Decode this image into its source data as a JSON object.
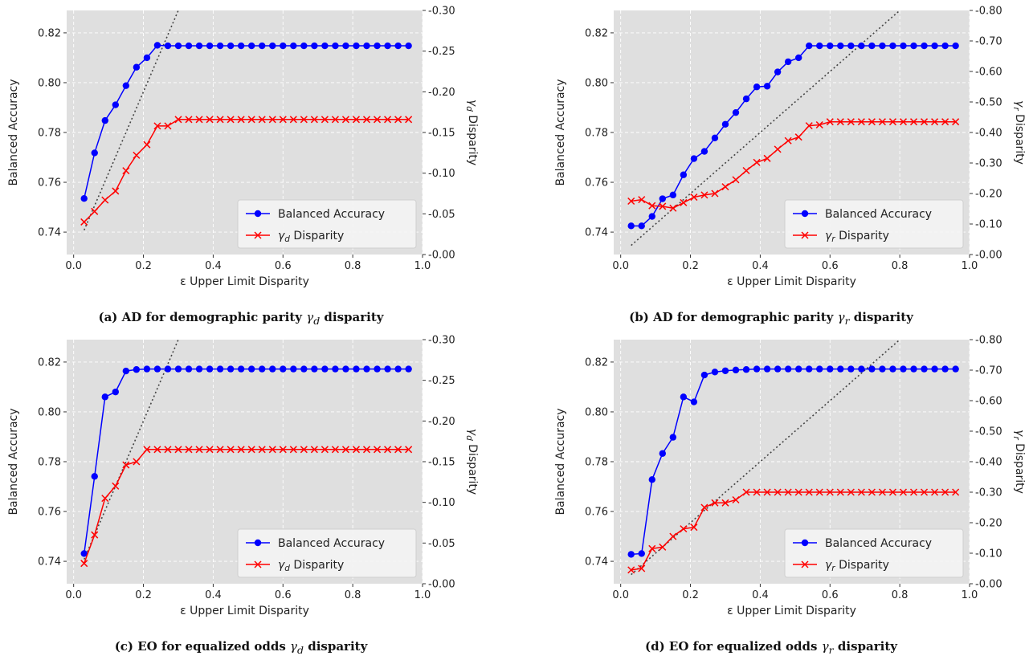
{
  "colors": {
    "plot_bg": "#dfdfdf",
    "grid": "#ffffff",
    "accuracy": "#0000ff",
    "disparity": "#ff0000",
    "diagonal": "#444444"
  },
  "chart_data": [
    {
      "type": "line",
      "caption": {
        "prefix": "(a) AD for demographic parity ",
        "sym": "γ",
        "sub": "d",
        "suffix": " disparity"
      },
      "xlabel": "ε Upper Limit Disparity",
      "ylabel": "Balanced Accuracy",
      "y2label": {
        "sym": "γ",
        "sub": "d",
        "rest": " Disparity"
      },
      "xlim": [
        -0.02,
        1.0
      ],
      "ylim": [
        0.731,
        0.829
      ],
      "y2lim": [
        0.0,
        0.3
      ],
      "xticks": [
        "0.0",
        "0.2",
        "0.4",
        "0.6",
        "0.8",
        "1.0"
      ],
      "yticks": [
        "0.74",
        "0.76",
        "0.78",
        "0.80",
        "0.82"
      ],
      "y2ticks": [
        "0.00",
        "0.05",
        "0.10",
        "0.15",
        "0.20",
        "0.25",
        "0.30"
      ],
      "legend_position": "lower-right",
      "grid": true,
      "series": [
        {
          "name": "Balanced Accuracy",
          "axis": "left",
          "marker": "circle",
          "x": [
            0.03,
            0.06,
            0.09,
            0.12,
            0.15,
            0.18,
            0.21,
            0.24,
            0.27,
            0.3,
            0.33,
            0.36,
            0.39,
            0.42,
            0.45,
            0.48,
            0.51,
            0.54,
            0.57,
            0.6,
            0.63,
            0.66,
            0.69,
            0.72,
            0.75,
            0.78,
            0.81,
            0.84,
            0.87,
            0.9,
            0.93,
            0.96
          ],
          "y": [
            0.7535,
            0.7718,
            0.7848,
            0.7911,
            0.7988,
            0.8062,
            0.81,
            0.815,
            0.8148,
            0.8148,
            0.8148,
            0.8148,
            0.8148,
            0.8148,
            0.8148,
            0.8148,
            0.8148,
            0.8148,
            0.8148,
            0.8148,
            0.8148,
            0.8148,
            0.8148,
            0.8148,
            0.8148,
            0.8148,
            0.8148,
            0.8148,
            0.8148,
            0.8148,
            0.8148,
            0.8148
          ]
        },
        {
          "name": "γd Disparity",
          "label": {
            "sym": "γ",
            "sub": "d",
            "rest": " Disparity"
          },
          "axis": "right",
          "marker": "x",
          "x": [
            0.03,
            0.06,
            0.09,
            0.12,
            0.15,
            0.18,
            0.21,
            0.24,
            0.27,
            0.3,
            0.33,
            0.36,
            0.39,
            0.42,
            0.45,
            0.48,
            0.51,
            0.54,
            0.57,
            0.6,
            0.63,
            0.66,
            0.69,
            0.72,
            0.75,
            0.78,
            0.81,
            0.84,
            0.87,
            0.9,
            0.93,
            0.96
          ],
          "y": [
            0.04,
            0.053,
            0.067,
            0.078,
            0.103,
            0.122,
            0.135,
            0.158,
            0.158,
            0.166,
            0.166,
            0.166,
            0.166,
            0.166,
            0.166,
            0.166,
            0.166,
            0.166,
            0.166,
            0.166,
            0.166,
            0.166,
            0.166,
            0.166,
            0.166,
            0.166,
            0.166,
            0.166,
            0.166,
            0.166,
            0.166,
            0.166
          ]
        }
      ],
      "diagonal": {
        "x": [
          0.03,
          0.3
        ],
        "y2": [
          0.03,
          0.3
        ]
      }
    },
    {
      "type": "line",
      "caption": {
        "prefix": "(b) AD for demographic parity ",
        "sym": "γ",
        "sub": "r",
        "suffix": " disparity"
      },
      "xlabel": "ε Upper Limit Disparity",
      "ylabel": "Balanced Accuracy",
      "y2label": {
        "sym": "γ",
        "sub": "r",
        "rest": " Disparity"
      },
      "xlim": [
        -0.02,
        1.0
      ],
      "ylim": [
        0.731,
        0.829
      ],
      "y2lim": [
        0.0,
        0.8
      ],
      "xticks": [
        "0.0",
        "0.2",
        "0.4",
        "0.6",
        "0.8",
        "1.0"
      ],
      "yticks": [
        "0.74",
        "0.76",
        "0.78",
        "0.80",
        "0.82"
      ],
      "y2ticks": [
        "0.00",
        "0.10",
        "0.20",
        "0.30",
        "0.40",
        "0.50",
        "0.60",
        "0.70",
        "0.80"
      ],
      "legend_position": "lower-right",
      "grid": true,
      "series": [
        {
          "name": "Balanced Accuracy",
          "axis": "left",
          "marker": "circle",
          "x": [
            0.03,
            0.06,
            0.09,
            0.12,
            0.15,
            0.18,
            0.21,
            0.24,
            0.27,
            0.3,
            0.33,
            0.36,
            0.39,
            0.42,
            0.45,
            0.48,
            0.51,
            0.54,
            0.57,
            0.6,
            0.63,
            0.66,
            0.69,
            0.72,
            0.75,
            0.78,
            0.81,
            0.84,
            0.87,
            0.9,
            0.93,
            0.96
          ],
          "y": [
            0.7425,
            0.7425,
            0.7463,
            0.7534,
            0.7549,
            0.763,
            0.7695,
            0.7724,
            0.7778,
            0.7833,
            0.788,
            0.7935,
            0.7983,
            0.7986,
            0.8043,
            0.8084,
            0.81,
            0.8148,
            0.8148,
            0.8148,
            0.8148,
            0.8148,
            0.8148,
            0.8148,
            0.8148,
            0.8148,
            0.8148,
            0.8148,
            0.8148,
            0.8148,
            0.8148,
            0.8148
          ]
        },
        {
          "name": "γr Disparity",
          "label": {
            "sym": "γ",
            "sub": "r",
            "rest": " Disparity"
          },
          "axis": "right",
          "marker": "x",
          "x": [
            0.03,
            0.06,
            0.09,
            0.12,
            0.15,
            0.18,
            0.21,
            0.24,
            0.27,
            0.3,
            0.33,
            0.36,
            0.39,
            0.42,
            0.45,
            0.48,
            0.51,
            0.54,
            0.57,
            0.6,
            0.63,
            0.66,
            0.69,
            0.72,
            0.75,
            0.78,
            0.81,
            0.84,
            0.87,
            0.9,
            0.93,
            0.96
          ],
          "y": [
            0.175,
            0.18,
            0.16,
            0.158,
            0.152,
            0.17,
            0.188,
            0.195,
            0.2,
            0.222,
            0.245,
            0.275,
            0.302,
            0.315,
            0.345,
            0.373,
            0.385,
            0.422,
            0.425,
            0.435,
            0.435,
            0.435,
            0.435,
            0.435,
            0.435,
            0.435,
            0.435,
            0.435,
            0.435,
            0.435,
            0.435,
            0.435
          ]
        }
      ],
      "diagonal": {
        "x": [
          0.03,
          0.8
        ],
        "y2": [
          0.03,
          0.8
        ]
      }
    },
    {
      "type": "line",
      "caption": {
        "prefix": "(c) EO for equalized odds ",
        "sym": "γ",
        "sub": "d",
        "suffix": " disparity"
      },
      "xlabel": "ε Upper Limit Disparity",
      "ylabel": "Balanced Accuracy",
      "y2label": {
        "sym": "γ",
        "sub": "d",
        "rest": " Disparity"
      },
      "xlim": [
        -0.02,
        1.0
      ],
      "ylim": [
        0.731,
        0.829
      ],
      "y2lim": [
        0.0,
        0.3
      ],
      "xticks": [
        "0.0",
        "0.2",
        "0.4",
        "0.6",
        "0.8",
        "1.0"
      ],
      "yticks": [
        "0.74",
        "0.76",
        "0.78",
        "0.80",
        "0.82"
      ],
      "y2ticks": [
        "0.00",
        "0.05",
        "0.10",
        "0.15",
        "0.20",
        "0.25",
        "0.30"
      ],
      "legend_position": "lower-right",
      "grid": true,
      "series": [
        {
          "name": "Balanced Accuracy",
          "axis": "left",
          "marker": "circle",
          "x": [
            0.03,
            0.06,
            0.09,
            0.12,
            0.15,
            0.18,
            0.21,
            0.24,
            0.27,
            0.3,
            0.33,
            0.36,
            0.39,
            0.42,
            0.45,
            0.48,
            0.51,
            0.54,
            0.57,
            0.6,
            0.63,
            0.66,
            0.69,
            0.72,
            0.75,
            0.78,
            0.81,
            0.84,
            0.87,
            0.9,
            0.93,
            0.96
          ],
          "y": [
            0.7431,
            0.7741,
            0.806,
            0.808,
            0.8164,
            0.817,
            0.8172,
            0.8172,
            0.8172,
            0.8172,
            0.8172,
            0.8172,
            0.8172,
            0.8172,
            0.8172,
            0.8172,
            0.8172,
            0.8172,
            0.8172,
            0.8172,
            0.8172,
            0.8172,
            0.8172,
            0.8172,
            0.8172,
            0.8172,
            0.8172,
            0.8172,
            0.8172,
            0.8172,
            0.8172,
            0.8172
          ]
        },
        {
          "name": "γd Disparity",
          "label": {
            "sym": "γ",
            "sub": "d",
            "rest": " Disparity"
          },
          "axis": "right",
          "marker": "x",
          "x": [
            0.03,
            0.06,
            0.09,
            0.12,
            0.15,
            0.18,
            0.21,
            0.24,
            0.27,
            0.3,
            0.33,
            0.36,
            0.39,
            0.42,
            0.45,
            0.48,
            0.51,
            0.54,
            0.57,
            0.6,
            0.63,
            0.66,
            0.69,
            0.72,
            0.75,
            0.78,
            0.81,
            0.84,
            0.87,
            0.9,
            0.93,
            0.96
          ],
          "y": [
            0.025,
            0.06,
            0.105,
            0.12,
            0.146,
            0.15,
            0.165,
            0.165,
            0.165,
            0.165,
            0.165,
            0.165,
            0.165,
            0.165,
            0.165,
            0.165,
            0.165,
            0.165,
            0.165,
            0.165,
            0.165,
            0.165,
            0.165,
            0.165,
            0.165,
            0.165,
            0.165,
            0.165,
            0.165,
            0.165,
            0.165,
            0.165
          ]
        }
      ],
      "diagonal": {
        "x": [
          0.03,
          0.3
        ],
        "y2": [
          0.03,
          0.3
        ]
      }
    },
    {
      "type": "line",
      "caption": {
        "prefix": "(d) EO for equalized odds ",
        "sym": "γ",
        "sub": "r",
        "suffix": " disparity"
      },
      "xlabel": "ε Upper Limit Disparity",
      "ylabel": "Balanced Accuracy",
      "y2label": {
        "sym": "γ",
        "sub": "r",
        "rest": " Disparity"
      },
      "xlim": [
        -0.02,
        1.0
      ],
      "ylim": [
        0.731,
        0.829
      ],
      "y2lim": [
        0.0,
        0.8
      ],
      "xticks": [
        "0.0",
        "0.2",
        "0.4",
        "0.6",
        "0.8",
        "1.0"
      ],
      "yticks": [
        "0.74",
        "0.76",
        "0.78",
        "0.80",
        "0.82"
      ],
      "y2ticks": [
        "0.00",
        "0.10",
        "0.20",
        "0.30",
        "0.40",
        "0.50",
        "0.60",
        "0.70",
        "0.80"
      ],
      "legend_position": "lower-right",
      "grid": true,
      "series": [
        {
          "name": "Balanced Accuracy",
          "axis": "left",
          "marker": "circle",
          "x": [
            0.03,
            0.06,
            0.09,
            0.12,
            0.15,
            0.18,
            0.21,
            0.24,
            0.27,
            0.3,
            0.33,
            0.36,
            0.39,
            0.42,
            0.45,
            0.48,
            0.51,
            0.54,
            0.57,
            0.6,
            0.63,
            0.66,
            0.69,
            0.72,
            0.75,
            0.78,
            0.81,
            0.84,
            0.87,
            0.9,
            0.93,
            0.96
          ],
          "y": [
            0.7428,
            0.7431,
            0.7728,
            0.7833,
            0.7898,
            0.806,
            0.804,
            0.8148,
            0.816,
            0.8165,
            0.8168,
            0.817,
            0.8172,
            0.8172,
            0.8172,
            0.8172,
            0.8172,
            0.8172,
            0.8172,
            0.8172,
            0.8172,
            0.8172,
            0.8172,
            0.8172,
            0.8172,
            0.8172,
            0.8172,
            0.8172,
            0.8172,
            0.8172,
            0.8172,
            0.8172
          ]
        },
        {
          "name": "γr Disparity",
          "label": {
            "sym": "γ",
            "sub": "r",
            "rest": " Disparity"
          },
          "axis": "right",
          "marker": "x",
          "x": [
            0.03,
            0.06,
            0.09,
            0.12,
            0.15,
            0.18,
            0.21,
            0.24,
            0.27,
            0.3,
            0.33,
            0.36,
            0.39,
            0.42,
            0.45,
            0.48,
            0.51,
            0.54,
            0.57,
            0.6,
            0.63,
            0.66,
            0.69,
            0.72,
            0.75,
            0.78,
            0.81,
            0.84,
            0.87,
            0.9,
            0.93,
            0.96
          ],
          "y": [
            0.045,
            0.05,
            0.115,
            0.12,
            0.155,
            0.18,
            0.185,
            0.25,
            0.265,
            0.265,
            0.275,
            0.3,
            0.3,
            0.3,
            0.3,
            0.3,
            0.3,
            0.3,
            0.3,
            0.3,
            0.3,
            0.3,
            0.3,
            0.3,
            0.3,
            0.3,
            0.3,
            0.3,
            0.3,
            0.3,
            0.3,
            0.3
          ]
        }
      ],
      "diagonal": {
        "x": [
          0.03,
          0.8
        ],
        "y2": [
          0.03,
          0.8
        ]
      }
    }
  ]
}
